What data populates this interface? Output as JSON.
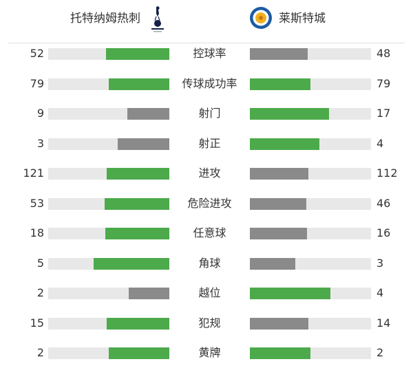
{
  "home": {
    "name": "托特纳姆热刺",
    "logo": "tottenham-crest"
  },
  "away": {
    "name": "莱斯特城",
    "logo": "leicester-crest"
  },
  "colors": {
    "leader": "#4caa4b",
    "trailer": "#8a8a8a",
    "track": "#e8e8e8"
  },
  "stats": [
    {
      "label": "控球率",
      "home": 52,
      "away": 48
    },
    {
      "label": "传球成功率",
      "home": 79,
      "away": 79
    },
    {
      "label": "射门",
      "home": 9,
      "away": 17
    },
    {
      "label": "射正",
      "home": 3,
      "away": 4
    },
    {
      "label": "进攻",
      "home": 121,
      "away": 112
    },
    {
      "label": "危险进攻",
      "home": 53,
      "away": 46
    },
    {
      "label": "任意球",
      "home": 18,
      "away": 16
    },
    {
      "label": "角球",
      "home": 5,
      "away": 3
    },
    {
      "label": "越位",
      "home": 2,
      "away": 4
    },
    {
      "label": "犯规",
      "home": 15,
      "away": 14
    },
    {
      "label": "黄牌",
      "home": 2,
      "away": 2
    }
  ]
}
